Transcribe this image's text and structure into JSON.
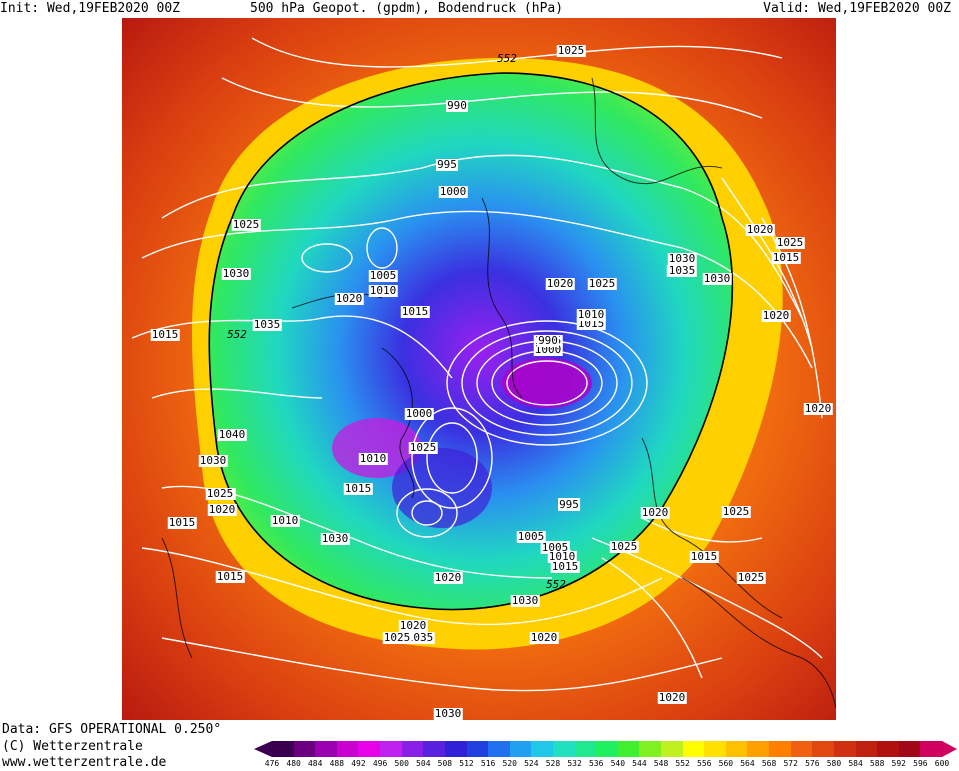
{
  "header": {
    "init_label": "Init: Wed,19FEB2020 00Z",
    "title": "500 hPa Geopot. (gpdm), Bodendruck (hPa)",
    "valid_label": "Valid: Wed,19FEB2020 00Z"
  },
  "footer": {
    "data_source": "Data: GFS OPERATIONAL 0.250°",
    "copyright": "(C) Wetterzentrale",
    "url": "www.wetterzentrale.de"
  },
  "legend": {
    "ticks": [
      "476",
      "480",
      "484",
      "488",
      "492",
      "496",
      "500",
      "504",
      "508",
      "512",
      "516",
      "520",
      "524",
      "528",
      "532",
      "536",
      "540",
      "544",
      "548",
      "552",
      "556",
      "560",
      "564",
      "568",
      "572",
      "576",
      "580",
      "584",
      "588",
      "592",
      "596",
      "600"
    ],
    "colors": [
      "#3a0050",
      "#6a0080",
      "#9a00b0",
      "#c800d0",
      "#e800e8",
      "#c020f0",
      "#8a20e8",
      "#5a20e0",
      "#3020d8",
      "#2040e0",
      "#2070f0",
      "#20a0f0",
      "#20c8e8",
      "#20e0c0",
      "#20e890",
      "#20f060",
      "#40f030",
      "#80f020",
      "#c0f020",
      "#ffff00",
      "#ffe000",
      "#ffc000",
      "#ffa000",
      "#ff8000",
      "#f06010",
      "#e04810",
      "#d03010",
      "#c02010",
      "#b01010",
      "#a00818",
      "#d00060"
    ]
  },
  "height_labels": [
    "552",
    "552",
    "552"
  ],
  "pressure_labels": [
    "990",
    "995",
    "1000",
    "1005",
    "1010",
    "1015",
    "1020",
    "1025",
    "1030",
    "1035",
    "1040",
    "1030",
    "1035",
    "1025",
    "1020",
    "1015",
    "1010",
    "1005",
    "1000",
    "995",
    "990",
    "1025",
    "1020",
    "1025",
    "1015",
    "1030",
    "1035",
    "1020",
    "1010",
    "1015",
    "1020",
    "1025",
    "1030",
    "1025",
    "1020",
    "1015",
    "1025",
    "1030",
    "1035",
    "1025",
    "1030",
    "1020",
    "1015",
    "1010",
    "1005",
    "1000",
    "995",
    "1025",
    "1020",
    "1015",
    "1020",
    "1025",
    "1015",
    "1025",
    "1020",
    "1030",
    "1020",
    "1005",
    "1010",
    "1000",
    "1015",
    "995"
  ]
}
